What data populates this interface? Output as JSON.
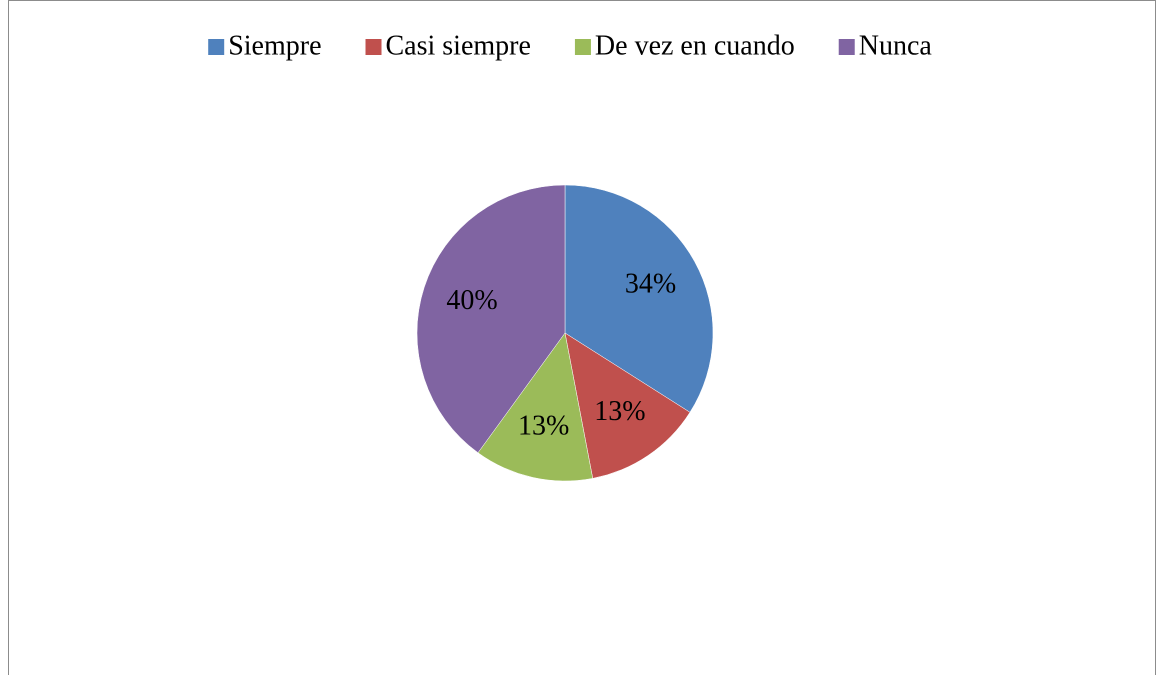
{
  "chart_data": {
    "type": "pie",
    "categories": [
      "Siempre",
      "Casi siempre",
      "De vez en cuando",
      "Nunca"
    ],
    "values": [
      34,
      13,
      13,
      40
    ],
    "value_labels": [
      "34%",
      "13%",
      "13%",
      "40%"
    ],
    "colors": [
      "#4f81bd",
      "#c0504d",
      "#9bbb59",
      "#8064a2"
    ],
    "legend": "top"
  }
}
